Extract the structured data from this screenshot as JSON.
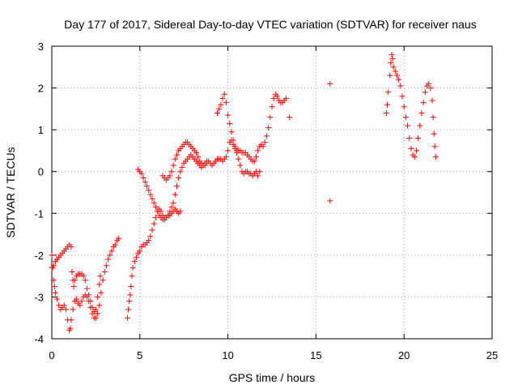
{
  "chart_data": {
    "type": "scatter",
    "title": "Day 177 of 2017, Sidereal Day-to-day VTEC variation (SDTVAR) for receiver naus",
    "xlabel": "GPS time / hours",
    "ylabel": "SDTVAR / TECUs",
    "xlim": [
      0,
      25
    ],
    "ylim": [
      -4,
      3
    ],
    "x_ticks": [
      0,
      5,
      10,
      15,
      20,
      25
    ],
    "y_ticks": [
      -4,
      -3,
      -2,
      -1,
      0,
      1,
      2,
      3
    ],
    "x_tick_labels": [
      "0",
      "5",
      "10",
      "15",
      "20",
      "25"
    ],
    "y_tick_labels": [
      "-4",
      "-3",
      "-2",
      "-1",
      "0",
      "1",
      "2",
      "3"
    ],
    "grid": true,
    "marker": "+",
    "color": "#ff0000",
    "series": [
      {
        "points": [
          [
            0.0,
            -2.0
          ],
          [
            0.05,
            -2.3
          ],
          [
            0.1,
            -2.6
          ],
          [
            0.15,
            -2.75
          ],
          [
            0.2,
            -2.9
          ],
          [
            0.3,
            -3.05
          ],
          [
            0.4,
            -3.2
          ],
          [
            0.5,
            -3.3
          ],
          [
            0.6,
            -3.25
          ],
          [
            0.7,
            -3.2
          ],
          [
            0.8,
            -3.3
          ],
          [
            0.9,
            -3.55
          ],
          [
            1.0,
            -3.8
          ],
          [
            1.05,
            -3.75
          ],
          [
            1.1,
            -3.55
          ],
          [
            1.2,
            -3.3
          ],
          [
            1.3,
            -3.1
          ],
          [
            1.4,
            -3.05
          ],
          [
            1.5,
            -3.15
          ],
          [
            1.6,
            -3.2
          ],
          [
            1.7,
            -3.1
          ],
          [
            1.8,
            -3.0
          ],
          [
            1.9,
            -2.95
          ],
          [
            2.0,
            -3.0
          ],
          [
            2.1,
            -3.1
          ],
          [
            2.2,
            -3.25
          ],
          [
            2.3,
            -3.4
          ],
          [
            2.4,
            -3.5
          ],
          [
            2.5,
            -3.5
          ],
          [
            2.6,
            -3.4
          ],
          [
            2.7,
            -3.2
          ],
          [
            2.8,
            -2.9
          ],
          [
            2.9,
            -2.6
          ],
          [
            3.0,
            -2.4
          ],
          [
            3.1,
            -2.25
          ],
          [
            3.2,
            -2.1
          ],
          [
            3.3,
            -2.0
          ],
          [
            3.4,
            -1.9
          ],
          [
            3.5,
            -1.8
          ],
          [
            3.6,
            -1.75
          ],
          [
            3.7,
            -1.65
          ],
          [
            3.8,
            -1.6
          ]
        ]
      },
      {
        "points": [
          [
            0.0,
            -2.3
          ],
          [
            0.1,
            -2.25
          ],
          [
            0.2,
            -2.15
          ],
          [
            0.3,
            -2.1
          ],
          [
            0.4,
            -2.05
          ],
          [
            0.5,
            -2.0
          ],
          [
            0.6,
            -1.95
          ],
          [
            0.7,
            -1.9
          ],
          [
            0.8,
            -1.85
          ],
          [
            0.9,
            -1.8
          ],
          [
            1.0,
            -1.75
          ],
          [
            1.1,
            -1.8
          ],
          [
            1.15,
            -2.4
          ],
          [
            1.2,
            -2.6
          ],
          [
            1.25,
            -2.75
          ],
          [
            1.3,
            -2.6
          ],
          [
            1.4,
            -2.5
          ],
          [
            1.5,
            -2.45
          ],
          [
            1.6,
            -2.45
          ],
          [
            1.7,
            -2.45
          ],
          [
            1.8,
            -2.5
          ],
          [
            1.9,
            -2.6
          ],
          [
            2.0,
            -2.8
          ],
          [
            2.1,
            -2.95
          ],
          [
            2.2,
            -3.1
          ],
          [
            2.3,
            -3.25
          ],
          [
            2.4,
            -3.35
          ],
          [
            2.5,
            -3.3
          ],
          [
            2.6,
            -3.0
          ],
          [
            2.7,
            -2.7
          ],
          [
            2.75,
            -2.5
          ]
        ]
      },
      {
        "points": [
          [
            4.3,
            -3.5
          ],
          [
            4.35,
            -3.3
          ],
          [
            4.4,
            -3.1
          ],
          [
            4.45,
            -2.95
          ],
          [
            4.5,
            -2.75
          ],
          [
            4.55,
            -2.5
          ],
          [
            4.6,
            -2.3
          ],
          [
            4.7,
            -2.15
          ],
          [
            4.8,
            -2.05
          ],
          [
            4.9,
            -1.95
          ],
          [
            5.0,
            -1.9
          ],
          [
            5.1,
            -1.8
          ],
          [
            5.2,
            -1.75
          ],
          [
            5.3,
            -1.75
          ],
          [
            5.4,
            -1.7
          ],
          [
            5.5,
            -1.65
          ],
          [
            5.6,
            -1.55
          ],
          [
            5.7,
            -1.4
          ],
          [
            5.8,
            -1.25
          ],
          [
            5.9,
            -1.1
          ],
          [
            6.0,
            -0.95
          ],
          [
            6.1,
            -0.9
          ],
          [
            6.2,
            -0.95
          ],
          [
            6.3,
            -1.05
          ],
          [
            6.4,
            -1.1
          ],
          [
            6.5,
            -1.1
          ],
          [
            6.6,
            -1.05
          ],
          [
            6.7,
            -0.95
          ],
          [
            6.8,
            -0.85
          ],
          [
            6.9,
            -0.75
          ],
          [
            7.0,
            -0.55
          ],
          [
            7.1,
            -0.35
          ],
          [
            7.2,
            -0.15
          ],
          [
            7.3,
            0.0
          ],
          [
            7.4,
            0.1
          ],
          [
            7.5,
            0.2
          ],
          [
            7.6,
            0.25
          ],
          [
            7.7,
            0.3
          ],
          [
            7.8,
            0.35
          ],
          [
            7.9,
            0.4
          ],
          [
            8.0,
            0.35
          ],
          [
            8.1,
            0.3
          ],
          [
            8.2,
            0.25
          ],
          [
            8.3,
            0.2
          ],
          [
            8.4,
            0.15
          ],
          [
            8.5,
            0.1
          ],
          [
            8.6,
            0.15
          ],
          [
            8.7,
            0.2
          ],
          [
            8.8,
            0.25
          ],
          [
            8.9,
            0.25
          ],
          [
            9.0,
            0.2
          ],
          [
            9.1,
            0.15
          ],
          [
            9.2,
            0.2
          ],
          [
            9.3,
            0.25
          ],
          [
            9.4,
            0.3
          ],
          [
            9.5,
            0.3
          ],
          [
            9.6,
            0.3
          ],
          [
            9.7,
            0.25
          ],
          [
            9.8,
            0.3
          ],
          [
            9.9,
            0.35
          ],
          [
            10.0,
            0.5
          ],
          [
            10.1,
            0.7
          ],
          [
            10.2,
            0.75
          ],
          [
            10.3,
            0.65
          ],
          [
            10.4,
            0.55
          ],
          [
            10.5,
            0.5
          ],
          [
            10.6,
            0.5
          ],
          [
            10.7,
            0.5
          ],
          [
            10.8,
            0.45
          ],
          [
            10.9,
            0.45
          ],
          [
            11.0,
            0.45
          ],
          [
            11.1,
            0.4
          ],
          [
            11.2,
            0.35
          ],
          [
            11.3,
            0.3
          ],
          [
            11.4,
            0.25
          ],
          [
            11.5,
            0.25
          ],
          [
            11.6,
            0.35
          ],
          [
            11.7,
            0.5
          ],
          [
            11.8,
            0.6
          ],
          [
            11.9,
            0.65
          ],
          [
            12.0,
            0.6
          ],
          [
            12.1,
            0.7
          ],
          [
            12.2,
            0.85
          ],
          [
            12.3,
            1.05
          ],
          [
            12.4,
            1.3
          ],
          [
            12.5,
            1.55
          ],
          [
            12.6,
            1.75
          ],
          [
            12.7,
            1.85
          ],
          [
            12.8,
            1.8
          ],
          [
            12.9,
            1.7
          ],
          [
            13.0,
            1.65
          ],
          [
            13.1,
            1.65
          ],
          [
            13.2,
            1.7
          ],
          [
            13.3,
            1.75
          ]
        ]
      },
      {
        "points": [
          [
            4.9,
            0.05
          ],
          [
            5.0,
            0.0
          ],
          [
            5.1,
            -0.05
          ],
          [
            5.2,
            -0.15
          ],
          [
            5.3,
            -0.25
          ],
          [
            5.4,
            -0.35
          ],
          [
            5.5,
            -0.45
          ],
          [
            5.6,
            -0.55
          ],
          [
            5.7,
            -0.65
          ],
          [
            5.8,
            -0.75
          ],
          [
            5.9,
            -0.85
          ],
          [
            6.0,
            -0.95
          ],
          [
            6.1,
            -1.05
          ],
          [
            6.2,
            -1.1
          ],
          [
            6.3,
            -1.15
          ],
          [
            6.4,
            -1.15
          ],
          [
            6.5,
            -1.1
          ],
          [
            6.6,
            -1.05
          ],
          [
            6.7,
            -1.05
          ],
          [
            6.8,
            -1.0
          ],
          [
            6.9,
            -0.95
          ],
          [
            7.0,
            -0.9
          ],
          [
            7.1,
            -0.95
          ],
          [
            7.2,
            -1.0
          ],
          [
            7.3,
            -0.95
          ]
        ]
      },
      {
        "points": [
          [
            6.3,
            -0.1
          ],
          [
            6.4,
            -0.15
          ],
          [
            6.5,
            -0.2
          ],
          [
            6.6,
            -0.15
          ],
          [
            6.7,
            -0.1
          ],
          [
            6.8,
            0.0
          ],
          [
            6.9,
            0.15
          ],
          [
            7.0,
            0.3
          ],
          [
            7.1,
            0.4
          ],
          [
            7.2,
            0.5
          ],
          [
            7.3,
            0.55
          ],
          [
            7.4,
            0.6
          ],
          [
            7.5,
            0.65
          ],
          [
            7.6,
            0.7
          ],
          [
            7.7,
            0.7
          ],
          [
            7.8,
            0.65
          ],
          [
            7.9,
            0.6
          ],
          [
            8.0,
            0.55
          ],
          [
            8.1,
            0.5
          ],
          [
            8.2,
            0.45
          ],
          [
            8.3,
            0.35
          ],
          [
            8.4,
            0.25
          ],
          [
            8.5,
            0.2
          ],
          [
            8.6,
            0.15
          ],
          [
            8.7,
            0.15
          ],
          [
            8.8,
            0.2
          ]
        ]
      },
      {
        "points": [
          [
            9.4,
            1.4
          ],
          [
            9.5,
            1.5
          ],
          [
            9.6,
            1.6
          ],
          [
            9.7,
            1.75
          ],
          [
            9.8,
            1.85
          ],
          [
            9.9,
            1.65
          ],
          [
            10.0,
            1.35
          ],
          [
            10.1,
            1.15
          ],
          [
            10.2,
            0.95
          ],
          [
            10.3,
            0.75
          ],
          [
            10.4,
            0.6
          ],
          [
            10.5,
            0.45
          ],
          [
            10.6,
            0.3
          ],
          [
            10.7,
            0.15
          ],
          [
            10.8,
            0.0
          ],
          [
            10.9,
            -0.05
          ],
          [
            11.0,
            0.0
          ],
          [
            11.1,
            0.0
          ],
          [
            11.2,
            -0.05
          ],
          [
            11.3,
            -0.05
          ],
          [
            11.4,
            -0.1
          ],
          [
            11.5,
            -0.05
          ],
          [
            11.6,
            0.0
          ],
          [
            11.7,
            -0.1
          ],
          [
            11.8,
            0.0
          ]
        ]
      },
      {
        "points": [
          [
            13.5,
            1.3
          ],
          [
            15.8,
            2.1
          ],
          [
            15.8,
            -0.7
          ]
        ]
      },
      {
        "points": [
          [
            19.0,
            1.4
          ],
          [
            19.05,
            1.6
          ],
          [
            19.1,
            1.9
          ],
          [
            19.2,
            2.3
          ],
          [
            19.25,
            2.6
          ],
          [
            19.3,
            2.8
          ],
          [
            19.35,
            2.7
          ],
          [
            19.4,
            2.5
          ],
          [
            19.5,
            2.4
          ],
          [
            19.6,
            2.3
          ],
          [
            19.7,
            2.2
          ],
          [
            19.8,
            2.05
          ],
          [
            19.9,
            1.8
          ],
          [
            20.0,
            1.55
          ],
          [
            20.1,
            1.3
          ],
          [
            20.2,
            1.1
          ],
          [
            20.3,
            0.8
          ],
          [
            20.4,
            0.55
          ],
          [
            20.5,
            0.4
          ],
          [
            20.6,
            0.35
          ],
          [
            20.7,
            0.5
          ],
          [
            20.8,
            0.8
          ],
          [
            20.9,
            1.1
          ],
          [
            21.0,
            1.4
          ],
          [
            21.1,
            1.65
          ],
          [
            21.2,
            1.9
          ],
          [
            21.3,
            2.05
          ],
          [
            21.4,
            2.1
          ],
          [
            21.5,
            2.0
          ],
          [
            21.6,
            1.7
          ],
          [
            21.65,
            1.3
          ],
          [
            21.7,
            0.9
          ],
          [
            21.75,
            0.6
          ],
          [
            21.8,
            0.35
          ]
        ]
      }
    ]
  }
}
